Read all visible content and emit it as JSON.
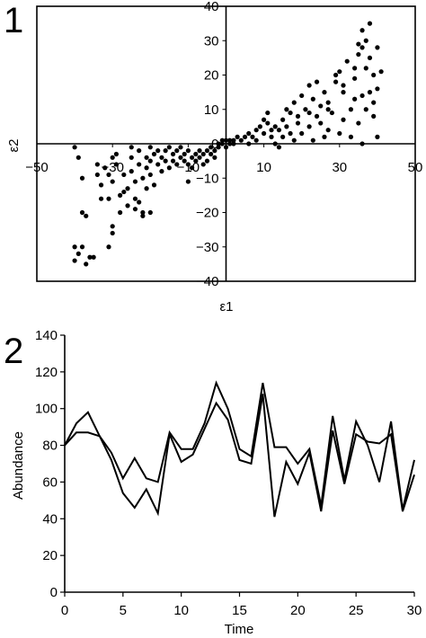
{
  "panel1": {
    "number": "1",
    "chart_data": {
      "type": "scatter",
      "xlabel": "ε1",
      "ylabel": "ε2",
      "xlim": [
        -50,
        50
      ],
      "ylim": [
        -40,
        40
      ],
      "xticks": [
        -50,
        -30,
        -10,
        10,
        30,
        50
      ],
      "yticks": [
        -40,
        -30,
        -20,
        -10,
        0,
        10,
        20,
        30,
        40
      ],
      "xtick_labels": [
        "−50",
        "−30",
        "−10",
        "10",
        "30",
        "50"
      ],
      "ytick_labels": [
        "−40",
        "−30",
        "−20",
        "−10",
        "0",
        "10",
        "20",
        "30",
        "40"
      ],
      "axes_through_origin": true,
      "grid": false,
      "points": [
        [
          -40,
          -1
        ],
        [
          -39,
          -4
        ],
        [
          -38,
          -10
        ],
        [
          -38,
          -20
        ],
        [
          -37,
          -21
        ],
        [
          -40,
          -30
        ],
        [
          -39,
          -32
        ],
        [
          -38,
          -30
        ],
        [
          -40,
          -34
        ],
        [
          -37,
          -35
        ],
        [
          -36,
          -33
        ],
        [
          -35,
          -33
        ],
        [
          -34,
          -6
        ],
        [
          -34,
          -9
        ],
        [
          -33,
          -12
        ],
        [
          -33,
          -16
        ],
        [
          -32,
          -7
        ],
        [
          -31,
          -9
        ],
        [
          -31,
          -16
        ],
        [
          -30,
          -4
        ],
        [
          -30,
          -11
        ],
        [
          -30,
          -24
        ],
        [
          -31,
          -30
        ],
        [
          -30,
          -26
        ],
        [
          -29,
          -3
        ],
        [
          -29,
          -6
        ],
        [
          -28,
          -15
        ],
        [
          -28,
          -20
        ],
        [
          -27,
          -9
        ],
        [
          -27,
          -14
        ],
        [
          -26,
          -13
        ],
        [
          -26,
          -18
        ],
        [
          -25,
          -1
        ],
        [
          -25,
          -4
        ],
        [
          -25,
          -8
        ],
        [
          -24,
          -11
        ],
        [
          -24,
          -16
        ],
        [
          -24,
          -19
        ],
        [
          -23,
          -2
        ],
        [
          -23,
          -6
        ],
        [
          -23,
          -17
        ],
        [
          -22,
          -20
        ],
        [
          -22,
          -21
        ],
        [
          -22,
          -10
        ],
        [
          -21,
          -4
        ],
        [
          -21,
          -7
        ],
        [
          -21,
          -13
        ],
        [
          -20,
          -1
        ],
        [
          -20,
          -5
        ],
        [
          -20,
          -9
        ],
        [
          -20,
          -20
        ],
        [
          -19,
          -3
        ],
        [
          -19,
          -12
        ],
        [
          -18,
          -2
        ],
        [
          -18,
          -6
        ],
        [
          -17,
          -4
        ],
        [
          -17,
          -8
        ],
        [
          -16,
          -2
        ],
        [
          -16,
          -5
        ],
        [
          -15,
          -1
        ],
        [
          -15,
          -7
        ],
        [
          -14,
          -3
        ],
        [
          -14,
          -5
        ],
        [
          -13,
          -6
        ],
        [
          -13,
          -2
        ],
        [
          -12,
          -4
        ],
        [
          -12,
          -1
        ],
        [
          -11,
          -5
        ],
        [
          -11,
          -3
        ],
        [
          -10,
          -2
        ],
        [
          -10,
          -6
        ],
        [
          -10,
          -11
        ],
        [
          -9,
          -4
        ],
        [
          -9,
          -7
        ],
        [
          -8,
          -3
        ],
        [
          -8,
          -5
        ],
        [
          -7,
          -2
        ],
        [
          -7,
          -4
        ],
        [
          -6,
          -3
        ],
        [
          -6,
          -6
        ],
        [
          -5,
          -2
        ],
        [
          -5,
          -5
        ],
        [
          -4,
          -1
        ],
        [
          -4,
          -3
        ],
        [
          -3,
          -2
        ],
        [
          -3,
          -4
        ],
        [
          -2,
          -1
        ],
        [
          -2,
          0
        ],
        [
          -1,
          0
        ],
        [
          -1,
          1
        ],
        [
          0,
          -1
        ],
        [
          0,
          1
        ],
        [
          1,
          1
        ],
        [
          1,
          0
        ],
        [
          2,
          0
        ],
        [
          2,
          1
        ],
        [
          3,
          2
        ],
        [
          4,
          1
        ],
        [
          5,
          2
        ],
        [
          6,
          3
        ],
        [
          6,
          0
        ],
        [
          7,
          2
        ],
        [
          8,
          4
        ],
        [
          8,
          1
        ],
        [
          9,
          5
        ],
        [
          10,
          3
        ],
        [
          10,
          7
        ],
        [
          11,
          6
        ],
        [
          11,
          9
        ],
        [
          12,
          2
        ],
        [
          13,
          5
        ],
        [
          13,
          0
        ],
        [
          14,
          4
        ],
        [
          15,
          7
        ],
        [
          15,
          2
        ],
        [
          16,
          5
        ],
        [
          16,
          10
        ],
        [
          17,
          3
        ],
        [
          17,
          9
        ],
        [
          18,
          1
        ],
        [
          18,
          12
        ],
        [
          19,
          6
        ],
        [
          19,
          8
        ],
        [
          20,
          14
        ],
        [
          20,
          3
        ],
        [
          21,
          10
        ],
        [
          22,
          5
        ],
        [
          22,
          17
        ],
        [
          23,
          1
        ],
        [
          23,
          13
        ],
        [
          24,
          8
        ],
        [
          24,
          18
        ],
        [
          25,
          6
        ],
        [
          25,
          11
        ],
        [
          26,
          15
        ],
        [
          26,
          2
        ],
        [
          27,
          4
        ],
        [
          27,
          12
        ],
        [
          28,
          9
        ],
        [
          29,
          18
        ],
        [
          30,
          3
        ],
        [
          30,
          21
        ],
        [
          31,
          7
        ],
        [
          31,
          17
        ],
        [
          32,
          24
        ],
        [
          33,
          10
        ],
        [
          33,
          2
        ],
        [
          34,
          19
        ],
        [
          34,
          13
        ],
        [
          35,
          26
        ],
        [
          35,
          6
        ],
        [
          36,
          28
        ],
        [
          36,
          0
        ],
        [
          36,
          14
        ],
        [
          37,
          22
        ],
        [
          37,
          30
        ],
        [
          37,
          10
        ],
        [
          38,
          25
        ],
        [
          38,
          15
        ],
        [
          38,
          35
        ],
        [
          39,
          20
        ],
        [
          39,
          8
        ],
        [
          40,
          28
        ],
        [
          40,
          2
        ],
        [
          40,
          16
        ],
        [
          41,
          21
        ],
        [
          39,
          12
        ],
        [
          35,
          29
        ],
        [
          36,
          33
        ],
        [
          34,
          22
        ],
        [
          14,
          -1
        ],
        [
          12,
          4
        ],
        [
          22,
          9
        ],
        [
          27,
          10
        ],
        [
          29,
          20
        ],
        [
          31,
          15
        ]
      ]
    }
  },
  "panel2": {
    "number": "2",
    "chart_data": {
      "type": "line",
      "xlabel": "Time",
      "ylabel": "Abundance",
      "xlim": [
        0,
        30
      ],
      "ylim": [
        0,
        140
      ],
      "xticks": [
        0,
        5,
        10,
        15,
        20,
        25,
        30
      ],
      "yticks": [
        0,
        20,
        40,
        60,
        80,
        100,
        120,
        140
      ],
      "grid": false,
      "x": [
        0,
        1,
        2,
        3,
        4,
        5,
        6,
        7,
        8,
        9,
        10,
        11,
        12,
        13,
        14,
        15,
        16,
        17,
        18,
        19,
        20,
        21,
        22,
        23,
        24,
        25,
        26,
        27,
        28,
        29,
        30
      ],
      "series": [
        {
          "values": [
            80,
            92,
            98,
            85,
            76,
            62,
            73,
            62,
            60,
            87,
            78,
            78,
            92,
            114,
            100,
            78,
            74,
            114,
            79,
            79,
            70,
            78,
            47,
            96,
            61,
            93,
            80,
            60,
            93,
            45,
            72
          ]
        },
        {
          "values": [
            80,
            87,
            87,
            85,
            72,
            54,
            46,
            56,
            43,
            86,
            71,
            75,
            89,
            103,
            94,
            72,
            70,
            108,
            41,
            71,
            59,
            76,
            44,
            88,
            59,
            86,
            82,
            81,
            86,
            44,
            64
          ]
        }
      ]
    }
  }
}
